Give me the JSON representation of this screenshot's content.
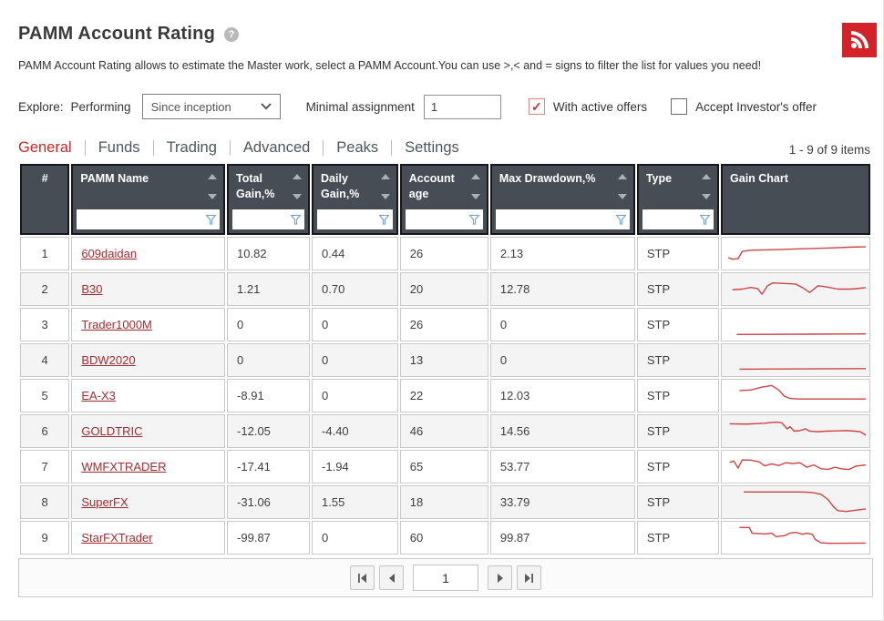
{
  "header": {
    "title": "PAMM Account Rating",
    "help_icon_glyph": "?",
    "rss_icon": "rss-feed"
  },
  "description": "PAMM Account Rating allows to estimate the Master work, select a PAMM Account.You can use >,< and = signs to filter the list for values you need!",
  "controls": {
    "explore_label": "Explore:",
    "performing_label": "Performing",
    "period_select": {
      "value": "Since inception"
    },
    "minimal_assignment_label": "Minimal assignment",
    "minimal_assignment_value": "1",
    "checkboxes": [
      {
        "label": "With active offers",
        "checked": true
      },
      {
        "label": "Accept Investor's offer",
        "checked": false
      }
    ],
    "checkmark_glyph": "✓"
  },
  "tabs": [
    {
      "label": "General",
      "active": true
    },
    {
      "label": "Funds",
      "active": false
    },
    {
      "label": "Trading",
      "active": false
    },
    {
      "label": "Advanced",
      "active": false
    },
    {
      "label": "Peaks",
      "active": false
    },
    {
      "label": "Settings",
      "active": false
    }
  ],
  "items_count": "1 - 9 of 9 items",
  "table": {
    "columns": [
      {
        "label": "#",
        "sortable": false,
        "filterable": false
      },
      {
        "label": "PAMM Name",
        "sortable": true,
        "filterable": true
      },
      {
        "label": "Total Gain,%",
        "sortable": true,
        "filterable": true
      },
      {
        "label": "Daily Gain,%",
        "sortable": true,
        "filterable": true
      },
      {
        "label": "Account age",
        "sortable": true,
        "filterable": true
      },
      {
        "label": "Max Drawdown,%",
        "sortable": true,
        "filterable": true
      },
      {
        "label": "Type",
        "sortable": true,
        "filterable": true
      },
      {
        "label": "Gain Chart",
        "sortable": false,
        "filterable": false
      }
    ],
    "rows": [
      {
        "num": "1",
        "name": "609daidan",
        "total_gain": "10.82",
        "daily_gain": "0.44",
        "account_age": "26",
        "max_drawdown": "2.13",
        "type": "STP",
        "spark": [
          [
            2,
            64
          ],
          [
            5,
            70
          ],
          [
            9,
            68
          ],
          [
            12,
            42
          ],
          [
            18,
            38
          ],
          [
            35,
            36
          ],
          [
            55,
            33
          ],
          [
            75,
            30
          ],
          [
            90,
            27
          ],
          [
            100,
            26
          ]
        ]
      },
      {
        "num": "2",
        "name": "B30",
        "total_gain": "1.21",
        "daily_gain": "0.70",
        "account_age": "20",
        "max_drawdown": "12.78",
        "type": "STP",
        "spark": [
          [
            5,
            52
          ],
          [
            12,
            50
          ],
          [
            18,
            44
          ],
          [
            23,
            48
          ],
          [
            26,
            68
          ],
          [
            30,
            38
          ],
          [
            34,
            28
          ],
          [
            42,
            30
          ],
          [
            50,
            32
          ],
          [
            55,
            45
          ],
          [
            60,
            62
          ],
          [
            66,
            38
          ],
          [
            72,
            42
          ],
          [
            80,
            50
          ],
          [
            90,
            50
          ],
          [
            100,
            45
          ]
        ]
      },
      {
        "num": "3",
        "name": "Trader1000M",
        "total_gain": "0",
        "daily_gain": "0",
        "account_age": "26",
        "max_drawdown": "0",
        "type": "STP",
        "spark": [
          [
            8,
            85
          ],
          [
            100,
            83
          ]
        ]
      },
      {
        "num": "4",
        "name": "BDW2020",
        "total_gain": "0",
        "daily_gain": "0",
        "account_age": "13",
        "max_drawdown": "0",
        "type": "STP",
        "spark": [
          [
            10,
            82
          ],
          [
            100,
            80
          ]
        ]
      },
      {
        "num": "5",
        "name": "EA-X3",
        "total_gain": "-8.91",
        "daily_gain": "0",
        "account_age": "22",
        "max_drawdown": "12.03",
        "type": "STP",
        "spark": [
          [
            10,
            32
          ],
          [
            18,
            30
          ],
          [
            26,
            20
          ],
          [
            33,
            14
          ],
          [
            38,
            30
          ],
          [
            42,
            52
          ],
          [
            46,
            60
          ],
          [
            52,
            62
          ],
          [
            100,
            62
          ]
        ]
      },
      {
        "num": "6",
        "name": "GOLDTRIC",
        "total_gain": "-12.05",
        "daily_gain": "-4.40",
        "account_age": "46",
        "max_drawdown": "14.56",
        "type": "STP",
        "spark": [
          [
            3,
            24
          ],
          [
            15,
            25
          ],
          [
            28,
            22
          ],
          [
            36,
            18
          ],
          [
            40,
            20
          ],
          [
            44,
            42
          ],
          [
            46,
            34
          ],
          [
            49,
            50
          ],
          [
            53,
            48
          ],
          [
            57,
            42
          ],
          [
            60,
            50
          ],
          [
            66,
            52
          ],
          [
            72,
            50
          ],
          [
            80,
            49
          ],
          [
            86,
            48
          ],
          [
            92,
            50
          ],
          [
            96,
            52
          ],
          [
            100,
            64
          ]
        ]
      },
      {
        "num": "7",
        "name": "WMFXTRADER",
        "total_gain": "-17.41",
        "daily_gain": "-1.94",
        "account_age": "65",
        "max_drawdown": "53.77",
        "type": "STP",
        "spark": [
          [
            3,
            35
          ],
          [
            6,
            30
          ],
          [
            9,
            55
          ],
          [
            12,
            26
          ],
          [
            18,
            27
          ],
          [
            24,
            33
          ],
          [
            28,
            47
          ],
          [
            33,
            40
          ],
          [
            38,
            46
          ],
          [
            43,
            36
          ],
          [
            48,
            39
          ],
          [
            53,
            36
          ],
          [
            58,
            52
          ],
          [
            63,
            44
          ],
          [
            68,
            57
          ],
          [
            73,
            60
          ],
          [
            78,
            52
          ],
          [
            83,
            58
          ],
          [
            88,
            60
          ],
          [
            93,
            48
          ],
          [
            100,
            44
          ]
        ]
      },
      {
        "num": "8",
        "name": "SuperFX",
        "total_gain": "-31.06",
        "daily_gain": "1.55",
        "account_age": "18",
        "max_drawdown": "33.79",
        "type": "STP",
        "spark": [
          [
            13,
            14
          ],
          [
            55,
            14
          ],
          [
            62,
            16
          ],
          [
            68,
            22
          ],
          [
            73,
            40
          ],
          [
            77,
            66
          ],
          [
            80,
            80
          ],
          [
            86,
            83
          ],
          [
            100,
            74
          ]
        ]
      },
      {
        "num": "9",
        "name": "StarFXTrader",
        "total_gain": "-99.87",
        "daily_gain": "0",
        "account_age": "60",
        "max_drawdown": "99.87",
        "type": "STP",
        "spark": [
          [
            10,
            14
          ],
          [
            17,
            14
          ],
          [
            19,
            34
          ],
          [
            28,
            37
          ],
          [
            33,
            34
          ],
          [
            36,
            46
          ],
          [
            42,
            43
          ],
          [
            46,
            34
          ],
          [
            50,
            31
          ],
          [
            55,
            38
          ],
          [
            58,
            34
          ],
          [
            62,
            38
          ],
          [
            64,
            56
          ],
          [
            68,
            68
          ],
          [
            74,
            70
          ],
          [
            100,
            69
          ]
        ]
      }
    ]
  },
  "pagination": {
    "page_value": "1"
  },
  "colors": {
    "accent_red": "#c22a2a",
    "rss_red": "#d2232a",
    "link_red": "#a02c33",
    "spark_red": "#cb4547",
    "header_bg": "#464d55",
    "filter_funnel_blue": "#6f9fc8"
  }
}
